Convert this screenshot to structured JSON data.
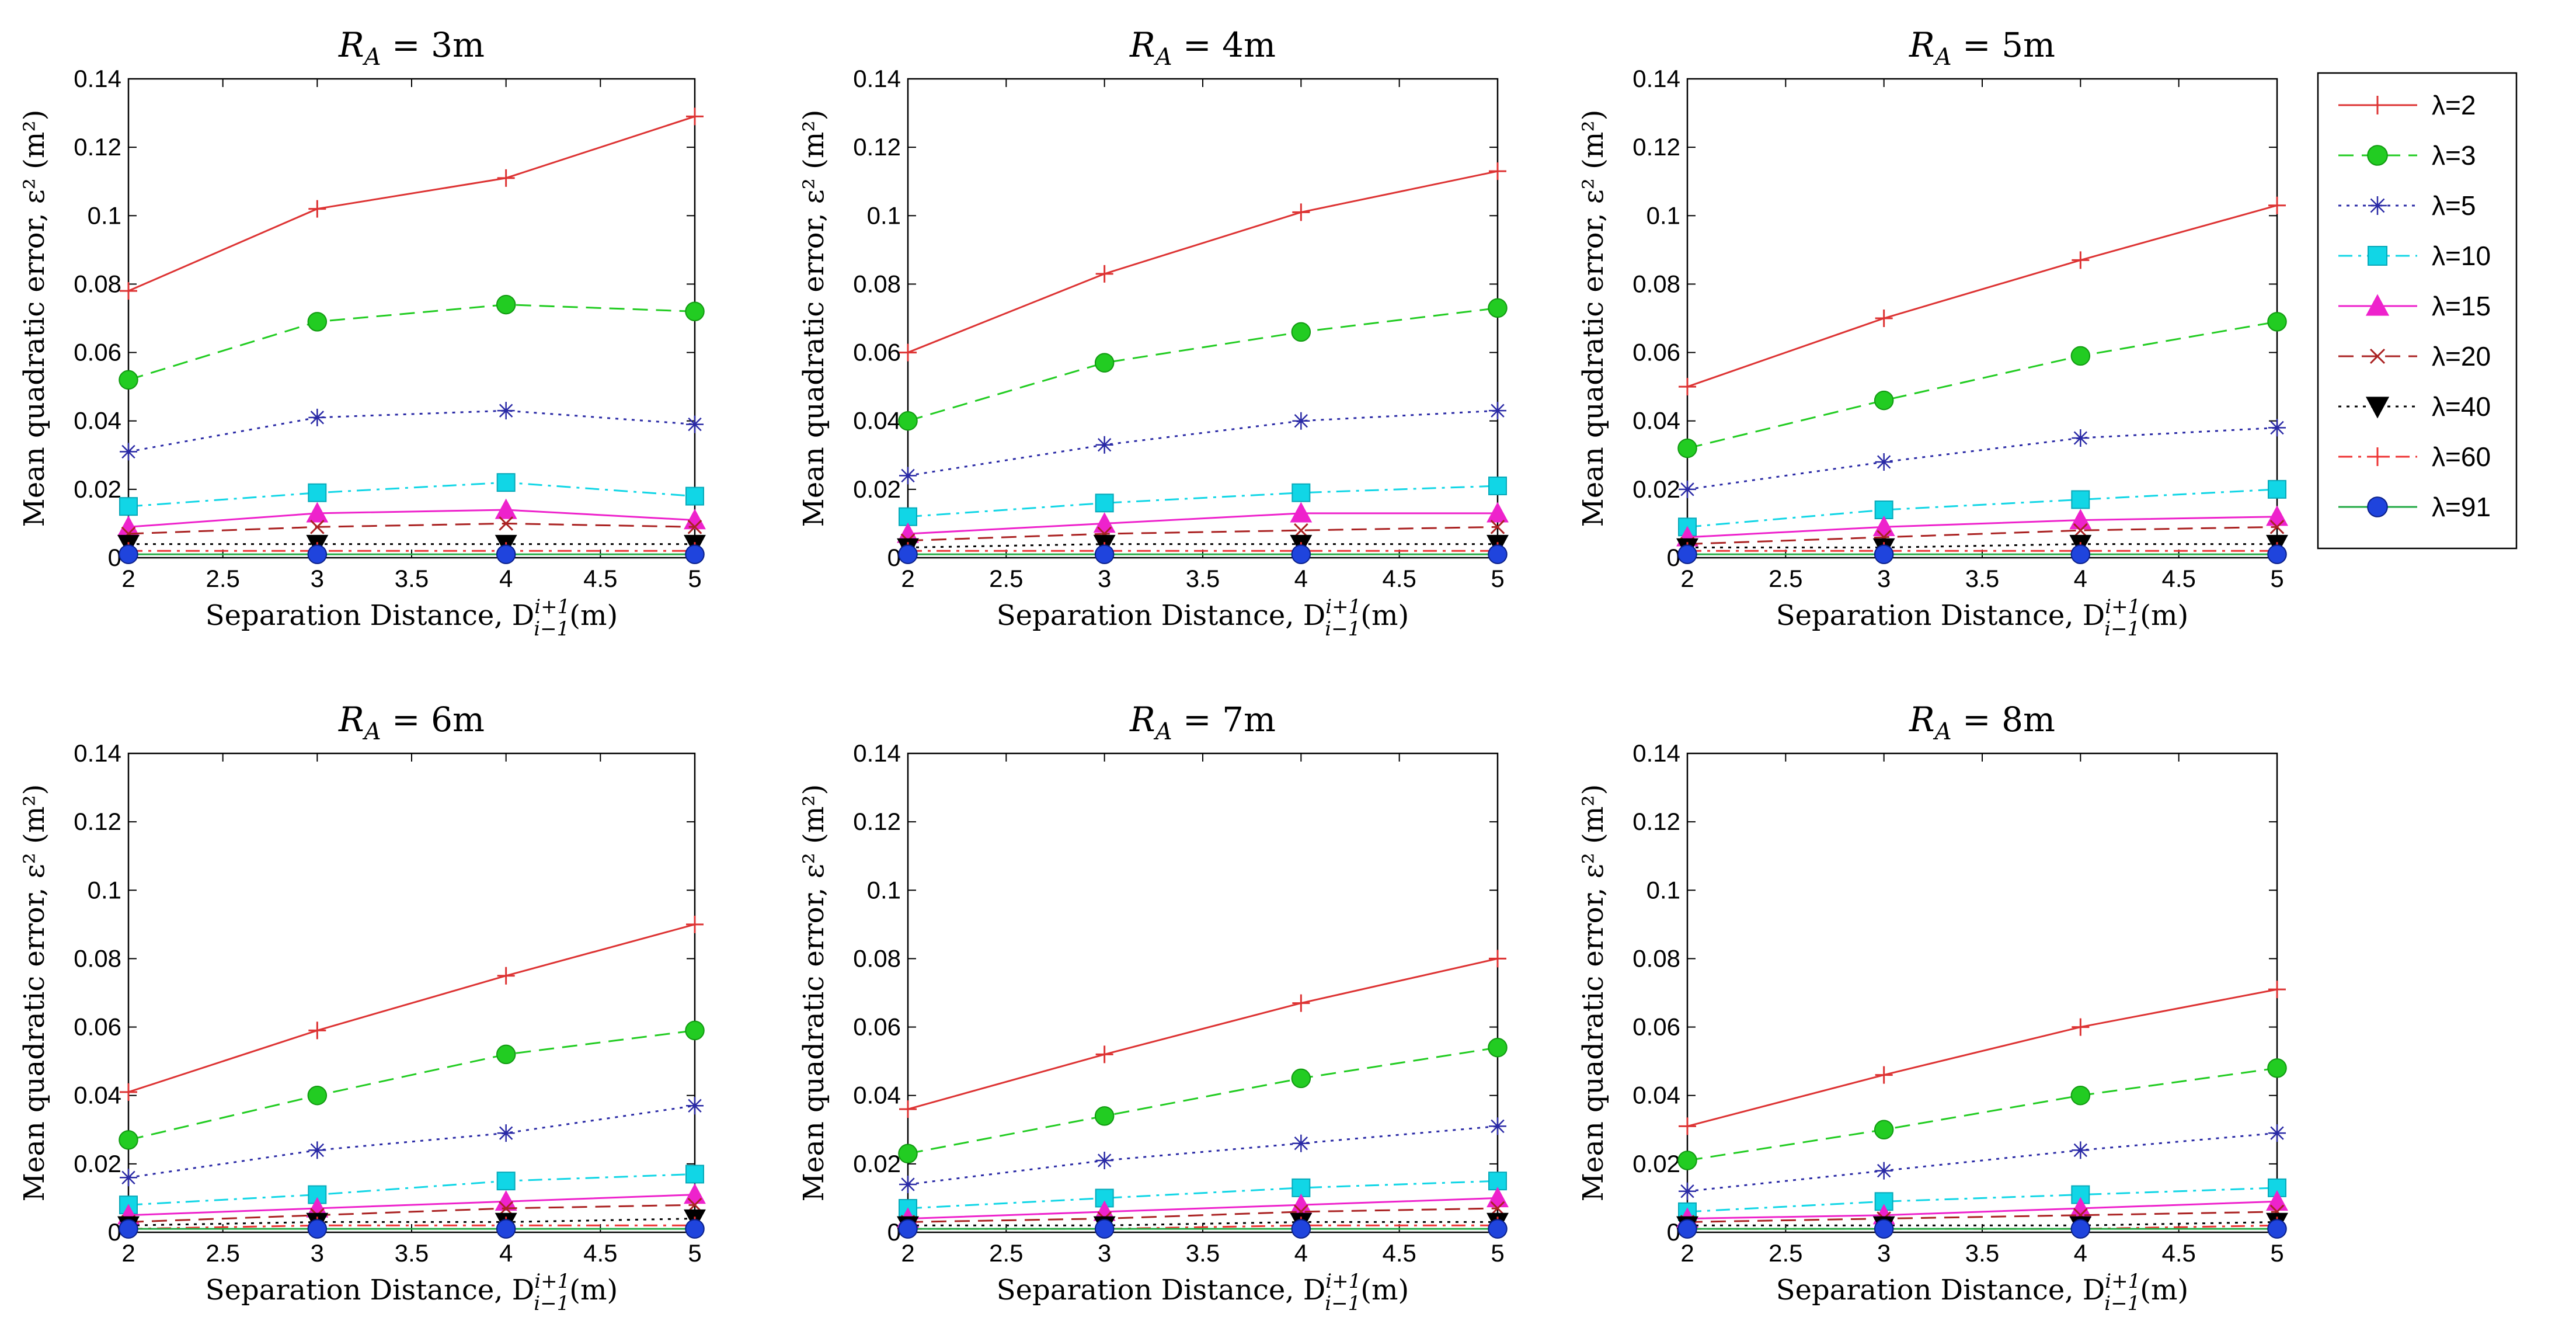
{
  "legend": {
    "entries": [
      {
        "label": "λ=2",
        "color": "#dd3333",
        "dash": "solid",
        "marker": "plus"
      },
      {
        "label": "λ=3",
        "color": "#22cc22",
        "dash": "dashed",
        "marker": "circle"
      },
      {
        "label": "λ=5",
        "color": "#2a2aa6",
        "dash": "dotted",
        "marker": "star"
      },
      {
        "label": "λ=10",
        "color": "#11d6e6",
        "dash": "dashdot",
        "marker": "square"
      },
      {
        "label": "λ=15",
        "color": "#ee22cc",
        "dash": "solid",
        "marker": "triangle-up"
      },
      {
        "label": "λ=20",
        "color": "#aa2222",
        "dash": "dashed",
        "marker": "x"
      },
      {
        "label": "λ=40",
        "color": "#000000",
        "dash": "dotted",
        "marker": "triangle-down"
      },
      {
        "label": "λ=60",
        "color": "#ee3333",
        "dash": "dashdot",
        "marker": "plus"
      },
      {
        "label": "λ=91",
        "color": "#22aa44",
        "dash": "solid",
        "marker": "circle-blue"
      }
    ]
  },
  "chart_data": [
    {
      "type": "line",
      "title_var": "R",
      "title_sub": "A",
      "title_value": "3m",
      "ylabel": "Mean quadratic error, ε² (m²)",
      "xlabel": "Separation Distance, D",
      "xlabel_sub": "i−1",
      "xlabel_sup": "i+1",
      "xlabel_unit": "(m)",
      "x": [
        2,
        3,
        4,
        5
      ],
      "xlim": [
        2,
        5
      ],
      "ylim": [
        0,
        0.14
      ],
      "xticks": [
        "2",
        "2.5",
        "3",
        "3.5",
        "4",
        "4.5",
        "5"
      ],
      "yticks": [
        "0",
        "0.02",
        "0.04",
        "0.06",
        "0.08",
        "0.1",
        "0.12",
        "0.14"
      ],
      "series": [
        {
          "name": "λ=2",
          "values": [
            0.078,
            0.102,
            0.111,
            0.129
          ]
        },
        {
          "name": "λ=3",
          "values": [
            0.052,
            0.069,
            0.074,
            0.072
          ]
        },
        {
          "name": "λ=5",
          "values": [
            0.031,
            0.041,
            0.043,
            0.039
          ]
        },
        {
          "name": "λ=10",
          "values": [
            0.015,
            0.019,
            0.022,
            0.018
          ]
        },
        {
          "name": "λ=15",
          "values": [
            0.009,
            0.013,
            0.014,
            0.011
          ]
        },
        {
          "name": "λ=20",
          "values": [
            0.007,
            0.009,
            0.01,
            0.009
          ]
        },
        {
          "name": "λ=40",
          "values": [
            0.004,
            0.004,
            0.004,
            0.004
          ]
        },
        {
          "name": "λ=60",
          "values": [
            0.002,
            0.002,
            0.002,
            0.002
          ]
        },
        {
          "name": "λ=91",
          "values": [
            0.001,
            0.001,
            0.001,
            0.001
          ]
        }
      ]
    },
    {
      "type": "line",
      "title_var": "R",
      "title_sub": "A",
      "title_value": "4m",
      "ylabel": "Mean quadratic error, ε² (m²)",
      "xlabel": "Separation Distance, D",
      "xlabel_sub": "i−1",
      "xlabel_sup": "i+1",
      "xlabel_unit": "(m)",
      "x": [
        2,
        3,
        4,
        5
      ],
      "xlim": [
        2,
        5
      ],
      "ylim": [
        0,
        0.14
      ],
      "xticks": [
        "2",
        "2.5",
        "3",
        "3.5",
        "4",
        "4.5",
        "5"
      ],
      "yticks": [
        "0",
        "0.02",
        "0.04",
        "0.06",
        "0.08",
        "0.1",
        "0.12",
        "0.14"
      ],
      "series": [
        {
          "name": "λ=2",
          "values": [
            0.06,
            0.083,
            0.101,
            0.113
          ]
        },
        {
          "name": "λ=3",
          "values": [
            0.04,
            0.057,
            0.066,
            0.073
          ]
        },
        {
          "name": "λ=5",
          "values": [
            0.024,
            0.033,
            0.04,
            0.043
          ]
        },
        {
          "name": "λ=10",
          "values": [
            0.012,
            0.016,
            0.019,
            0.021
          ]
        },
        {
          "name": "λ=15",
          "values": [
            0.007,
            0.01,
            0.013,
            0.013
          ]
        },
        {
          "name": "λ=20",
          "values": [
            0.005,
            0.007,
            0.008,
            0.009
          ]
        },
        {
          "name": "λ=40",
          "values": [
            0.003,
            0.004,
            0.004,
            0.004
          ]
        },
        {
          "name": "λ=60",
          "values": [
            0.002,
            0.002,
            0.002,
            0.002
          ]
        },
        {
          "name": "λ=91",
          "values": [
            0.001,
            0.001,
            0.001,
            0.001
          ]
        }
      ]
    },
    {
      "type": "line",
      "title_var": "R",
      "title_sub": "A",
      "title_value": "5m",
      "ylabel": "Mean quadratic error, ε² (m²)",
      "xlabel": "Separation Distance, D",
      "xlabel_sub": "i−1",
      "xlabel_sup": "i+1",
      "xlabel_unit": "(m)",
      "x": [
        2,
        3,
        4,
        5
      ],
      "xlim": [
        2,
        5
      ],
      "ylim": [
        0,
        0.14
      ],
      "xticks": [
        "2",
        "2.5",
        "3",
        "3.5",
        "4",
        "4.5",
        "5"
      ],
      "yticks": [
        "0",
        "0.02",
        "0.04",
        "0.06",
        "0.08",
        "0.1",
        "0.12",
        "0.14"
      ],
      "series": [
        {
          "name": "λ=2",
          "values": [
            0.05,
            0.07,
            0.087,
            0.103
          ]
        },
        {
          "name": "λ=3",
          "values": [
            0.032,
            0.046,
            0.059,
            0.069
          ]
        },
        {
          "name": "λ=5",
          "values": [
            0.02,
            0.028,
            0.035,
            0.038
          ]
        },
        {
          "name": "λ=10",
          "values": [
            0.009,
            0.014,
            0.017,
            0.02
          ]
        },
        {
          "name": "λ=15",
          "values": [
            0.006,
            0.009,
            0.011,
            0.012
          ]
        },
        {
          "name": "λ=20",
          "values": [
            0.004,
            0.006,
            0.008,
            0.009
          ]
        },
        {
          "name": "λ=40",
          "values": [
            0.003,
            0.003,
            0.004,
            0.004
          ]
        },
        {
          "name": "λ=60",
          "values": [
            0.002,
            0.002,
            0.002,
            0.002
          ]
        },
        {
          "name": "λ=91",
          "values": [
            0.001,
            0.001,
            0.001,
            0.001
          ]
        }
      ]
    },
    {
      "type": "line",
      "title_var": "R",
      "title_sub": "A",
      "title_value": "6m",
      "ylabel": "Mean quadratic error, ε² (m²)",
      "xlabel": "Separation Distance, D",
      "xlabel_sub": "i−1",
      "xlabel_sup": "i+1",
      "xlabel_unit": "(m)",
      "x": [
        2,
        3,
        4,
        5
      ],
      "xlim": [
        2,
        5
      ],
      "ylim": [
        0,
        0.14
      ],
      "xticks": [
        "2",
        "2.5",
        "3",
        "3.5",
        "4",
        "4.5",
        "5"
      ],
      "yticks": [
        "0",
        "0.02",
        "0.04",
        "0.06",
        "0.08",
        "0.1",
        "0.12",
        "0.14"
      ],
      "series": [
        {
          "name": "λ=2",
          "values": [
            0.041,
            0.059,
            0.075,
            0.09
          ]
        },
        {
          "name": "λ=3",
          "values": [
            0.027,
            0.04,
            0.052,
            0.059
          ]
        },
        {
          "name": "λ=5",
          "values": [
            0.016,
            0.024,
            0.029,
            0.037
          ]
        },
        {
          "name": "λ=10",
          "values": [
            0.008,
            0.011,
            0.015,
            0.017
          ]
        },
        {
          "name": "λ=15",
          "values": [
            0.005,
            0.007,
            0.009,
            0.011
          ]
        },
        {
          "name": "λ=20",
          "values": [
            0.003,
            0.005,
            0.007,
            0.008
          ]
        },
        {
          "name": "λ=40",
          "values": [
            0.002,
            0.003,
            0.003,
            0.004
          ]
        },
        {
          "name": "λ=60",
          "values": [
            0.001,
            0.002,
            0.002,
            0.002
          ]
        },
        {
          "name": "λ=91",
          "values": [
            0.001,
            0.001,
            0.001,
            0.001
          ]
        }
      ]
    },
    {
      "type": "line",
      "title_var": "R",
      "title_sub": "A",
      "title_value": "7m",
      "ylabel": "Mean quadratic error, ε² (m²)",
      "xlabel": "Separation Distance, D",
      "xlabel_sub": "i−1",
      "xlabel_sup": "i+1",
      "xlabel_unit": "(m)",
      "x": [
        2,
        3,
        4,
        5
      ],
      "xlim": [
        2,
        5
      ],
      "ylim": [
        0,
        0.14
      ],
      "xticks": [
        "2",
        "2.5",
        "3",
        "3.5",
        "4",
        "4.5",
        "5"
      ],
      "yticks": [
        "0",
        "0.02",
        "0.04",
        "0.06",
        "0.08",
        "0.1",
        "0.12",
        "0.14"
      ],
      "series": [
        {
          "name": "λ=2",
          "values": [
            0.036,
            0.052,
            0.067,
            0.08
          ]
        },
        {
          "name": "λ=3",
          "values": [
            0.023,
            0.034,
            0.045,
            0.054
          ]
        },
        {
          "name": "λ=5",
          "values": [
            0.014,
            0.021,
            0.026,
            0.031
          ]
        },
        {
          "name": "λ=10",
          "values": [
            0.007,
            0.01,
            0.013,
            0.015
          ]
        },
        {
          "name": "λ=15",
          "values": [
            0.004,
            0.006,
            0.008,
            0.01
          ]
        },
        {
          "name": "λ=20",
          "values": [
            0.003,
            0.004,
            0.006,
            0.007
          ]
        },
        {
          "name": "λ=40",
          "values": [
            0.002,
            0.002,
            0.003,
            0.003
          ]
        },
        {
          "name": "λ=60",
          "values": [
            0.001,
            0.001,
            0.002,
            0.002
          ]
        },
        {
          "name": "λ=91",
          "values": [
            0.001,
            0.001,
            0.001,
            0.001
          ]
        }
      ]
    },
    {
      "type": "line",
      "title_var": "R",
      "title_sub": "A",
      "title_value": "8m",
      "ylabel": "Mean quadratic error, ε² (m²)",
      "xlabel": "Separation Distance, D",
      "xlabel_sub": "i−1",
      "xlabel_sup": "i+1",
      "xlabel_unit": "(m)",
      "x": [
        2,
        3,
        4,
        5
      ],
      "xlim": [
        2,
        5
      ],
      "ylim": [
        0,
        0.14
      ],
      "xticks": [
        "2",
        "2.5",
        "3",
        "3.5",
        "4",
        "4.5",
        "5"
      ],
      "yticks": [
        "0",
        "0.02",
        "0.04",
        "0.06",
        "0.08",
        "0.1",
        "0.12",
        "0.14"
      ],
      "series": [
        {
          "name": "λ=2",
          "values": [
            0.031,
            0.046,
            0.06,
            0.071
          ]
        },
        {
          "name": "λ=3",
          "values": [
            0.021,
            0.03,
            0.04,
            0.048
          ]
        },
        {
          "name": "λ=5",
          "values": [
            0.012,
            0.018,
            0.024,
            0.029
          ]
        },
        {
          "name": "λ=10",
          "values": [
            0.006,
            0.009,
            0.011,
            0.013
          ]
        },
        {
          "name": "λ=15",
          "values": [
            0.004,
            0.005,
            0.007,
            0.009
          ]
        },
        {
          "name": "λ=20",
          "values": [
            0.003,
            0.004,
            0.005,
            0.006
          ]
        },
        {
          "name": "λ=40",
          "values": [
            0.002,
            0.002,
            0.002,
            0.003
          ]
        },
        {
          "name": "λ=60",
          "values": [
            0.001,
            0.001,
            0.001,
            0.002
          ]
        },
        {
          "name": "λ=91",
          "values": [
            0.001,
            0.001,
            0.001,
            0.001
          ]
        }
      ]
    }
  ]
}
